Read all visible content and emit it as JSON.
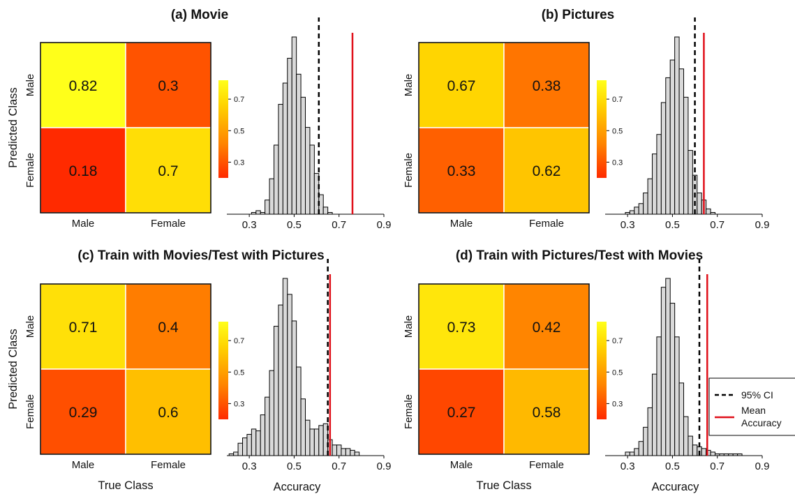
{
  "chart_data": [
    {
      "type": "heatmap",
      "title": "(a) Movie",
      "xlabel": "",
      "ylabel": "Predicted Class",
      "x_categories": [
        "Male",
        "Female"
      ],
      "y_categories": [
        "Male",
        "Female"
      ],
      "values": [
        [
          0.82,
          0.3
        ],
        [
          0.18,
          0.7
        ]
      ],
      "value_labels": [
        [
          "0.82",
          "0.3"
        ],
        [
          "0.18",
          "0.7"
        ]
      ],
      "colorbar_ticks": [
        "0.3",
        "0.5",
        "0.7"
      ],
      "histogram": {
        "type": "bar",
        "xlabel": "",
        "xlim": [
          0.2,
          0.9
        ],
        "xticks": [
          "0.3",
          "0.5",
          "0.7",
          "0.9"
        ],
        "bin_width": 0.02,
        "bin_starts": [
          0.31,
          0.33,
          0.35,
          0.37,
          0.39,
          0.41,
          0.43,
          0.45,
          0.47,
          0.49,
          0.51,
          0.53,
          0.55,
          0.57,
          0.59,
          0.61,
          0.63,
          0.65
        ],
        "counts": [
          1,
          2,
          1,
          8,
          20,
          39,
          62,
          74,
          88,
          100,
          79,
          66,
          49,
          39,
          23,
          11,
          4,
          1
        ],
        "ci_95": 0.61,
        "mean_accuracy": 0.76
      }
    },
    {
      "type": "heatmap",
      "title": "(b) Pictures",
      "xlabel": "",
      "ylabel": "",
      "x_categories": [
        "Male",
        "Female"
      ],
      "y_categories": [
        "Male",
        "Female"
      ],
      "values": [
        [
          0.67,
          0.38
        ],
        [
          0.33,
          0.62
        ]
      ],
      "value_labels": [
        [
          "0.67",
          "0.38"
        ],
        [
          "0.33",
          "0.62"
        ]
      ],
      "colorbar_ticks": [
        "0.3",
        "0.5",
        "0.7"
      ],
      "histogram": {
        "type": "bar",
        "xlabel": "",
        "xlim": [
          0.2,
          0.9
        ],
        "xticks": [
          "0.3",
          "0.5",
          "0.7",
          "0.9"
        ],
        "bin_width": 0.02,
        "bin_starts": [
          0.29,
          0.31,
          0.33,
          0.35,
          0.37,
          0.39,
          0.41,
          0.43,
          0.45,
          0.47,
          0.49,
          0.51,
          0.53,
          0.55,
          0.57,
          0.59,
          0.61,
          0.63,
          0.65,
          0.67
        ],
        "counts": [
          1,
          2,
          4,
          6,
          12,
          20,
          34,
          45,
          63,
          77,
          87,
          100,
          82,
          66,
          36,
          22,
          12,
          8,
          3,
          1
        ],
        "ci_95": 0.6,
        "mean_accuracy": 0.64
      }
    },
    {
      "type": "heatmap",
      "title": "(c) Train with Movies/Test with Pictures",
      "xlabel": "True Class",
      "ylabel": "Predicted Class",
      "x_categories": [
        "Male",
        "Female"
      ],
      "y_categories": [
        "Male",
        "Female"
      ],
      "values": [
        [
          0.71,
          0.4
        ],
        [
          0.29,
          0.6
        ]
      ],
      "value_labels": [
        [
          "0.71",
          "0.4"
        ],
        [
          "0.29",
          "0.6"
        ]
      ],
      "colorbar_ticks": [
        "0.3",
        "0.5",
        "0.7"
      ],
      "histogram": {
        "type": "bar",
        "xlabel": "Accuracy",
        "xlim": [
          0.2,
          0.9
        ],
        "xticks": [
          "0.3",
          "0.5",
          "0.7",
          "0.9"
        ],
        "bin_width": 0.02,
        "bin_starts": [
          0.21,
          0.23,
          0.25,
          0.27,
          0.29,
          0.31,
          0.33,
          0.35,
          0.37,
          0.39,
          0.41,
          0.43,
          0.45,
          0.47,
          0.49,
          0.51,
          0.53,
          0.55,
          0.57,
          0.59,
          0.61,
          0.63,
          0.65,
          0.67,
          0.69,
          0.71,
          0.73,
          0.75,
          0.77
        ],
        "counts": [
          1,
          2,
          7,
          10,
          12,
          15,
          14,
          23,
          33,
          48,
          73,
          85,
          100,
          91,
          76,
          50,
          32,
          20,
          15,
          15,
          17,
          18,
          9,
          6,
          6,
          4,
          4,
          3,
          2
        ],
        "ci_95": 0.65,
        "mean_accuracy": 0.66
      }
    },
    {
      "type": "heatmap",
      "title": "(d) Train with Pictures/Test with Movies",
      "xlabel": "True Class",
      "ylabel": "",
      "x_categories": [
        "Male",
        "Female"
      ],
      "y_categories": [
        "Male",
        "Female"
      ],
      "values": [
        [
          0.73,
          0.42
        ],
        [
          0.27,
          0.58
        ]
      ],
      "value_labels": [
        [
          "0.73",
          "0.42"
        ],
        [
          "0.27",
          "0.58"
        ]
      ],
      "colorbar_ticks": [
        "0.3",
        "0.5",
        "0.7"
      ],
      "histogram": {
        "type": "bar",
        "xlabel": "Accuracy",
        "xlim": [
          0.2,
          0.9
        ],
        "xticks": [
          "0.3",
          "0.5",
          "0.7",
          "0.9"
        ],
        "bin_width": 0.02,
        "bin_starts": [
          0.29,
          0.31,
          0.33,
          0.35,
          0.37,
          0.39,
          0.41,
          0.43,
          0.45,
          0.47,
          0.49,
          0.51,
          0.53,
          0.55,
          0.57,
          0.59,
          0.61,
          0.63,
          0.65,
          0.67,
          0.69,
          0.71,
          0.73,
          0.75,
          0.77,
          0.79
        ],
        "counts": [
          2,
          2,
          4,
          8,
          16,
          27,
          46,
          67,
          95,
          100,
          86,
          67,
          41,
          22,
          11,
          6,
          5,
          4,
          3,
          2,
          1,
          1,
          1,
          1,
          1,
          1
        ],
        "ci_95": 0.62,
        "mean_accuracy": 0.655
      }
    }
  ],
  "legend": {
    "placement": "right",
    "entries": [
      {
        "label": "95% CI",
        "style": "dashed",
        "color": "#000000"
      },
      {
        "label": "Mean Accuracy",
        "style": "solid",
        "color": "#e0101a"
      }
    ]
  },
  "colors": {
    "colormap": [
      "#ff2a00",
      "#ff8400",
      "#ffd400",
      "#ffff1a"
    ],
    "hist_fill": "#d9d9d9",
    "ci_line": "#000000",
    "mean_line": "#e0101a"
  }
}
